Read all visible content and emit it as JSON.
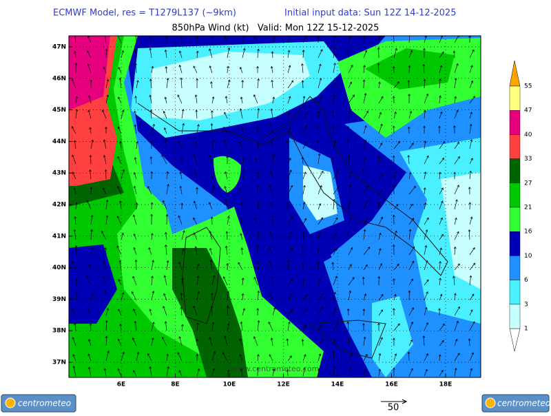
{
  "header": {
    "model": "ECMWF Model, res = T1279L137 (~9km)",
    "init": "Initial input data: Sun 12Z 14-12-2025",
    "field": "850hPa Wind (kt)   Valid: Mon 12Z 15-12-2025"
  },
  "map": {
    "lat_labels": [
      "47N",
      "46N",
      "45N",
      "44N",
      "43N",
      "42N",
      "41N",
      "40N",
      "39N",
      "38N",
      "37N"
    ],
    "lon_labels": [
      "6E",
      "8E",
      "10E",
      "12E",
      "14E",
      "16E",
      "18E"
    ],
    "watermark": "www.centrometeo.com"
  },
  "legend": {
    "labels": [
      "55",
      "47",
      "40",
      "33",
      "27",
      "21",
      "16",
      "10",
      "6",
      "3",
      "1"
    ]
  },
  "scale": {
    "label": "50"
  },
  "logos": [
    "centrometeo",
    "centrometeo"
  ]
}
